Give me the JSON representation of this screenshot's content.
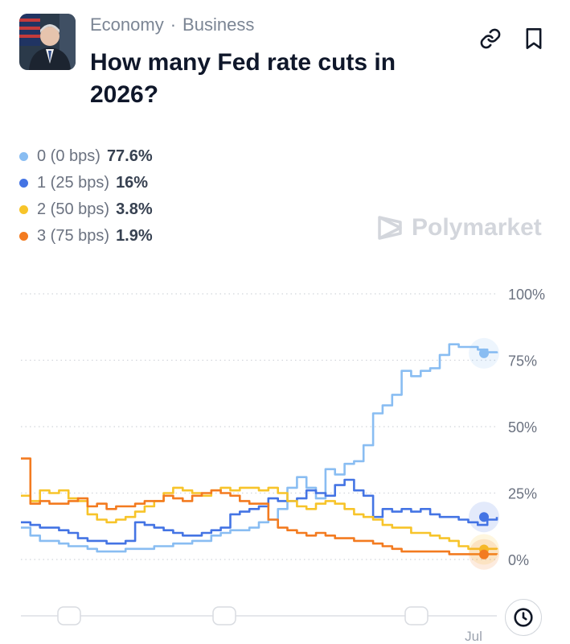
{
  "header": {
    "breadcrumb": [
      "Economy",
      "Business"
    ],
    "breadcrumb_separator": "·",
    "title": "How many Fed rate cuts in 2026?"
  },
  "icons": {
    "link": "link-icon",
    "bookmark": "bookmark-icon",
    "clock": "clock-icon",
    "watermark": "polymarket-logo-icon"
  },
  "watermark": {
    "text": "Polymarket"
  },
  "colors": {
    "series_0": "#89bdf2",
    "series_1": "#4474e4",
    "series_2": "#f7c42a",
    "series_3": "#f37b20",
    "grid": "#d1d5db",
    "axis_text": "#6b7280"
  },
  "legend": [
    {
      "label": "0 (0 bps)",
      "value": "77.6%",
      "color": "#89bdf2"
    },
    {
      "label": "1 (25 bps)",
      "value": "16%",
      "color": "#4474e4"
    },
    {
      "label": "2 (50 bps)",
      "value": "3.8%",
      "color": "#f7c42a"
    },
    {
      "label": "3 (75 bps)",
      "value": "1.9%",
      "color": "#f37b20"
    }
  ],
  "chart_data": {
    "type": "line",
    "x": [
      0,
      2,
      4,
      6,
      8,
      10,
      12,
      14,
      16,
      18,
      20,
      22,
      24,
      26,
      28,
      30,
      32,
      34,
      36,
      38,
      40,
      42,
      44,
      46,
      48,
      50,
      52,
      54,
      56,
      58,
      60,
      62,
      64,
      66,
      68,
      70,
      72,
      74,
      76,
      78,
      80,
      82,
      84,
      86,
      88,
      90,
      92,
      94,
      96,
      98,
      100
    ],
    "y_ticks": [
      "100%",
      "75%",
      "50%",
      "25%",
      "0%"
    ],
    "ylim": [
      0,
      100
    ],
    "x_tick_labels": [
      "Jul"
    ],
    "grid": true,
    "series": [
      {
        "name": "0 (0 bps)",
        "color": "#89bdf2",
        "values": [
          12,
          9,
          7,
          7,
          6,
          5,
          5,
          4,
          3,
          3,
          3,
          4,
          4,
          4,
          5,
          5,
          6,
          6,
          7,
          7,
          9,
          10,
          11,
          11,
          12,
          14,
          15,
          19,
          27,
          31,
          27,
          23,
          34,
          32,
          36,
          37,
          43,
          55,
          58,
          62,
          71,
          69,
          71,
          72,
          77,
          81,
          80,
          80,
          79,
          78,
          77.6
        ]
      },
      {
        "name": "1 (25 bps)",
        "color": "#4474e4",
        "values": [
          14,
          13,
          12,
          12,
          11,
          10,
          8,
          7,
          7,
          6,
          6,
          7,
          14,
          13,
          12,
          11,
          10,
          9,
          9,
          10,
          11,
          12,
          17,
          18,
          19,
          20,
          23,
          22,
          22,
          23,
          26,
          25,
          24,
          28,
          30,
          26,
          24,
          16,
          19,
          18,
          19,
          18,
          19,
          17,
          16,
          16,
          15,
          14,
          13,
          15,
          16
        ]
      },
      {
        "name": "2 (50 bps)",
        "color": "#f7c42a",
        "values": [
          24,
          22,
          26,
          25,
          26,
          23,
          22,
          17,
          15,
          14,
          15,
          16,
          18,
          20,
          22,
          25,
          27,
          26,
          25,
          24,
          26,
          27,
          26,
          27,
          27,
          26,
          27,
          25,
          22,
          20,
          19,
          21,
          22,
          21,
          19,
          17,
          16,
          15,
          13,
          12,
          12,
          10,
          10,
          9,
          8,
          7,
          5,
          4,
          4,
          4,
          3.8
        ]
      },
      {
        "name": "3 (75 bps)",
        "color": "#f37b20",
        "values": [
          38,
          21,
          22,
          21,
          21,
          22,
          23,
          20,
          21,
          19,
          20,
          20,
          21,
          22,
          22,
          24,
          23,
          22,
          24,
          25,
          26,
          25,
          24,
          22,
          21,
          21,
          15,
          12,
          11,
          10,
          9,
          10,
          9,
          8,
          8,
          7,
          7,
          6,
          5,
          4,
          3,
          3,
          3,
          3,
          3,
          2,
          2,
          2,
          2,
          2,
          1.9
        ]
      }
    ]
  }
}
